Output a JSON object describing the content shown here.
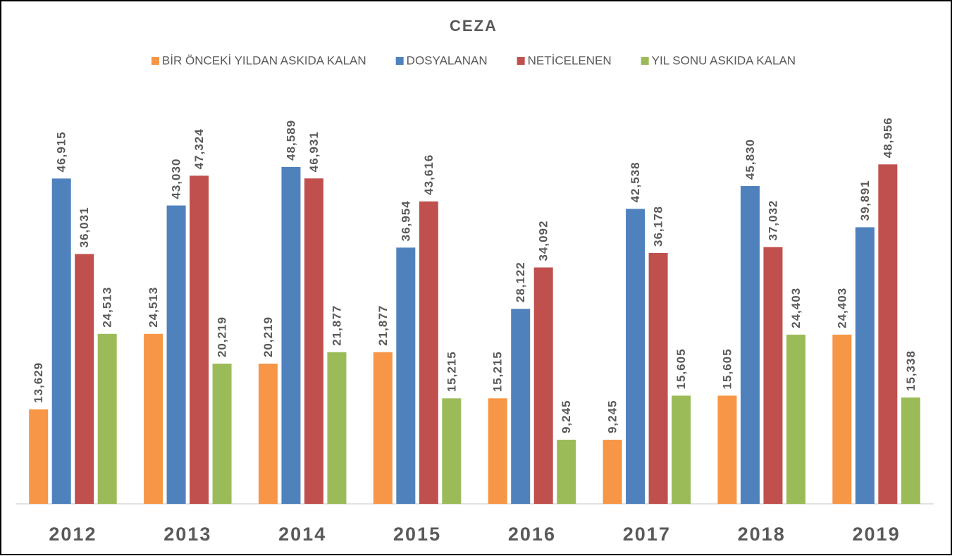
{
  "chart_data": {
    "type": "bar",
    "title": "CEZA",
    "categories": [
      "2012",
      "2013",
      "2014",
      "2015",
      "2016",
      "2017",
      "2018",
      "2019"
    ],
    "series": [
      {
        "name": "BİR ÖNCEKİ YILDAN ASKIDA KALAN",
        "color": "#f79646",
        "values": [
          13629,
          24513,
          20219,
          21877,
          15215,
          9245,
          15605,
          24403
        ],
        "value_labels": [
          "13,629",
          "24,513",
          "20,219",
          "21,877",
          "15,215",
          "9,245",
          "15,605",
          "24,403"
        ]
      },
      {
        "name": "DOSYALANAN",
        "color": "#4f81bd",
        "values": [
          46915,
          43030,
          48589,
          36954,
          28122,
          42538,
          45830,
          39891
        ],
        "value_labels": [
          "46,915",
          "43,030",
          "48,589",
          "36,954",
          "28,122",
          "42,538",
          "45,830",
          "39,891"
        ]
      },
      {
        "name": "NETİCELENEN",
        "color": "#c0504d",
        "values": [
          36031,
          47324,
          46931,
          43616,
          34092,
          36178,
          37032,
          48956
        ],
        "value_labels": [
          "36,031",
          "47,324",
          "46,931",
          "43,616",
          "34,092",
          "36,178",
          "37,032",
          "48,956"
        ]
      },
      {
        "name": "YIL SONU ASKIDA KALAN",
        "color": "#9bbb59",
        "values": [
          24513,
          20219,
          21877,
          15215,
          9245,
          15605,
          24403,
          15338
        ],
        "value_labels": [
          "24,513",
          "20,219",
          "21,877",
          "15,215",
          "9,245",
          "15,605",
          "24,403",
          "15,338"
        ]
      }
    ],
    "ylim": [
      0,
      50000
    ],
    "legend": "top"
  }
}
